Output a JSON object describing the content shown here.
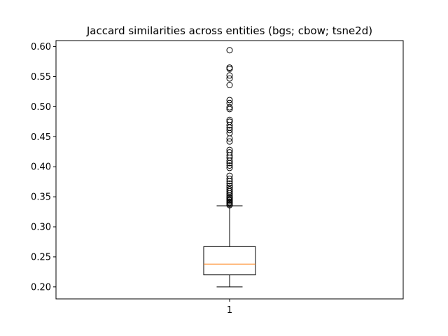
{
  "chart_data": {
    "type": "box",
    "title": "Jaccard similarities across entities (bgs; cbow; tsne2d)",
    "xlabel": "",
    "ylabel": "",
    "categories": [
      "1"
    ],
    "ylim": [
      0.18,
      0.61
    ],
    "yticks": [
      0.2,
      0.25,
      0.3,
      0.35,
      0.4,
      0.45,
      0.5,
      0.55,
      0.6
    ],
    "ytick_labels": [
      "0.20",
      "0.25",
      "0.30",
      "0.35",
      "0.40",
      "0.45",
      "0.50",
      "0.55",
      "0.60"
    ],
    "box": {
      "whisker_low": 0.2,
      "q1": 0.22,
      "median": 0.238,
      "q3": 0.267,
      "whisker_high": 0.335
    },
    "outliers": [
      0.336,
      0.338,
      0.34,
      0.342,
      0.344,
      0.346,
      0.348,
      0.35,
      0.353,
      0.356,
      0.359,
      0.362,
      0.365,
      0.368,
      0.372,
      0.376,
      0.38,
      0.385,
      0.398,
      0.402,
      0.406,
      0.41,
      0.415,
      0.419,
      0.424,
      0.428,
      0.442,
      0.447,
      0.456,
      0.461,
      0.465,
      0.469,
      0.475,
      0.478,
      0.496,
      0.499,
      0.506,
      0.511,
      0.536,
      0.547,
      0.552,
      0.563,
      0.565,
      0.594
    ],
    "colors": {
      "box": "#000000",
      "median": "#ff7f0e",
      "outlier": "#000000"
    },
    "grid": false
  }
}
